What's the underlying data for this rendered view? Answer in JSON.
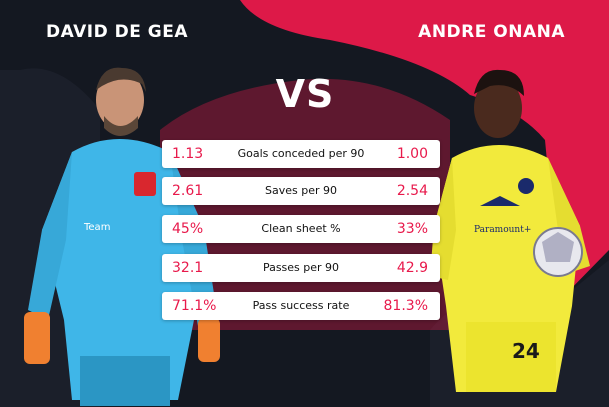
{
  "header": {
    "left_player": "DAVID DE GEA",
    "right_player": "ANDRE ONANA",
    "vs": "VS"
  },
  "stats": [
    {
      "label": "Goals conceded per 90",
      "left": "1.13",
      "right": "1.00"
    },
    {
      "label": "Saves per 90",
      "left": "2.61",
      "right": "2.54"
    },
    {
      "label": "Clean sheet %",
      "left": "45%",
      "right": "33%"
    },
    {
      "label": "Passes per 90",
      "left": "32.1",
      "right": "42.9"
    },
    {
      "label": "Pass success rate",
      "left": "71.1%",
      "right": "81.3%"
    }
  ],
  "colors": {
    "accent": "#e8194b",
    "background": "#141821",
    "row_bg": "#ffffff"
  },
  "images": {
    "left": "goalkeeper-blue-kit-photo",
    "right": "goalkeeper-yellow-kit-photo"
  }
}
